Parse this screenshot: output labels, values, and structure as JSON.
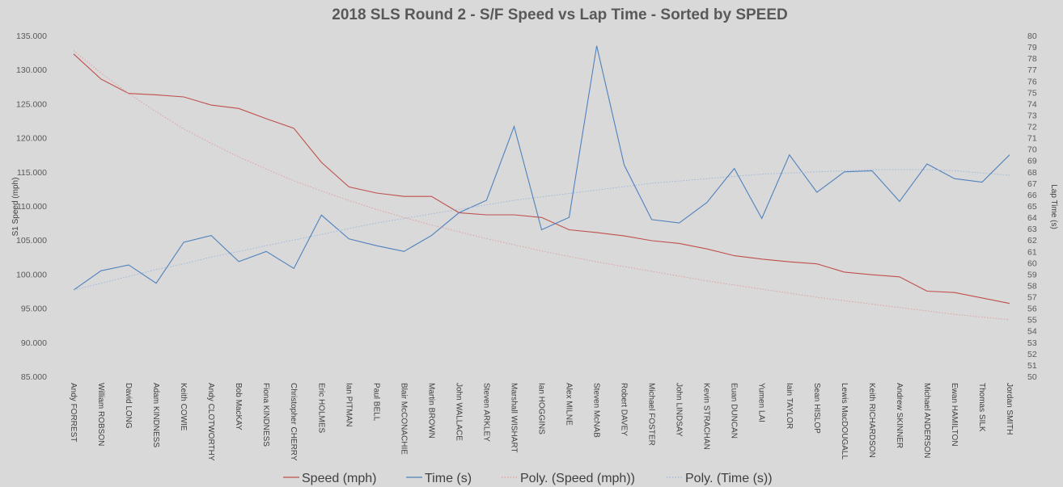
{
  "chart_data": {
    "type": "line",
    "title": "2018 SLS Round 2 - S/F Speed vs Lap Time - Sorted by SPEED",
    "ylabel_left": "S1 Speed (mph)",
    "ylabel_right": "Lap Time (s)",
    "ylim_left": [
      85,
      135
    ],
    "ylim_right": [
      50,
      80
    ],
    "left_ticks": [
      "135.000",
      "130.000",
      "125.000",
      "120.000",
      "115.000",
      "110.000",
      "105.000",
      "100.000",
      "95.000",
      "90.000",
      "85.000"
    ],
    "right_ticks": [
      "80",
      "79",
      "78",
      "77",
      "76",
      "75",
      "74",
      "73",
      "72",
      "71",
      "70",
      "69",
      "68",
      "67",
      "66",
      "65",
      "64",
      "63",
      "62",
      "61",
      "60",
      "59",
      "58",
      "57",
      "56",
      "55",
      "54",
      "53",
      "52",
      "51",
      "50"
    ],
    "categories": [
      "Andy FORREST",
      "William ROBSON",
      "David LONG",
      "Adam KINDNESS",
      "Keith COWIE",
      "Andy CLOTWORTHY",
      "Bob MacKAY",
      "Fiona KINDNESS",
      "Christopher CHERRY",
      "Eric HOLMES",
      "Ian PITMAN",
      "Paul BELL",
      "Blair McCONACHIE",
      "Martin BROWN",
      "John WALLACE",
      "Steven ARKLEY",
      "Marshall WISHART",
      "Ian HOGGINS",
      "Alex MILNE",
      "Steven McNAB",
      "Robert DAVEY",
      "Michael FOSTER",
      "John LINDSAY",
      "Kevin STRACHAN",
      "Euan DUNCAN",
      "Yumen LAI",
      "Iain TAYLOR",
      "Sean HISLOP",
      "Lewis MacDOUGALL",
      "Keith RICHARDSON",
      "Andrew SKINNER",
      "Michael ANDERSON",
      "Ewan HAMILTON",
      "Thomas SILK",
      "Jordan SMITH"
    ],
    "series": [
      {
        "name": "Speed (mph)",
        "axis": "left",
        "color": "#c0504d",
        "style": "solid",
        "values": [
          132.3,
          128.6,
          126.5,
          126.3,
          126.0,
          124.8,
          124.3,
          122.8,
          121.4,
          116.4,
          112.8,
          111.9,
          111.4,
          111.4,
          109.0,
          108.7,
          108.7,
          108.3,
          106.5,
          106.1,
          105.6,
          104.9,
          104.5,
          103.7,
          102.7,
          102.2,
          101.8,
          101.5,
          100.3,
          99.9,
          99.6,
          97.5,
          97.3,
          96.5,
          95.7
        ]
      },
      {
        "name": "Time (s)",
        "axis": "right",
        "color": "#4f81bd",
        "style": "solid",
        "values": [
          57.6,
          59.3,
          59.8,
          58.2,
          61.8,
          62.4,
          60.1,
          61.0,
          59.5,
          64.2,
          62.1,
          61.5,
          61.0,
          62.4,
          64.4,
          65.5,
          72.0,
          62.9,
          64.0,
          79.1,
          68.6,
          63.8,
          63.5,
          65.3,
          68.3,
          63.9,
          69.5,
          66.2,
          68.0,
          68.1,
          65.4,
          68.7,
          67.4,
          67.1,
          69.5
        ]
      },
      {
        "name": "Poly. (Speed (mph))",
        "axis": "left",
        "color": "#e0a0a0",
        "style": "dotted",
        "values": [
          132.8,
          129.5,
          126.5,
          123.8,
          121.3,
          119.2,
          117.2,
          115.4,
          113.7,
          112.2,
          110.8,
          109.5,
          108.3,
          107.2,
          106.2,
          105.2,
          104.3,
          103.4,
          102.6,
          101.8,
          101.1,
          100.4,
          99.7,
          99.0,
          98.4,
          97.8,
          97.2,
          96.6,
          96.1,
          95.6,
          95.1,
          94.6,
          94.1,
          93.7,
          93.3
        ]
      },
      {
        "name": "Poly. (Time (s))",
        "axis": "right",
        "color": "#9db8d9",
        "style": "dotted",
        "values": [
          57.6,
          58.2,
          58.8,
          59.4,
          59.9,
          60.5,
          61.0,
          61.5,
          62.0,
          62.5,
          63.0,
          63.5,
          63.9,
          64.3,
          64.7,
          65.1,
          65.5,
          65.8,
          66.1,
          66.4,
          66.7,
          67.0,
          67.2,
          67.4,
          67.6,
          67.8,
          67.9,
          68.0,
          68.1,
          68.2,
          68.2,
          68.2,
          68.1,
          67.9,
          67.7
        ]
      }
    ],
    "grid": false,
    "legend_position": "bottom"
  }
}
